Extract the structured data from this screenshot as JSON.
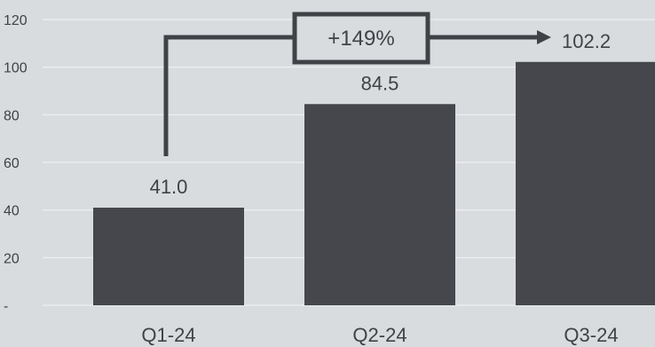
{
  "chart_data": {
    "type": "bar",
    "categories": [
      "Q1-24",
      "Q2-24",
      "Q3-24"
    ],
    "values": [
      41.0,
      84.5,
      102.2
    ],
    "data_labels": [
      "41.0",
      "84.5",
      "102.2"
    ],
    "y_ticks": [
      0,
      20,
      40,
      60,
      80,
      100,
      120
    ],
    "y_tick_labels": [
      "-",
      "20",
      "40",
      "60",
      "80",
      "100",
      "120"
    ],
    "ylim": [
      0,
      120
    ],
    "grid": true,
    "annotation": {
      "text": "+149%",
      "from_category": "Q1-24",
      "to_category": "Q3-24"
    },
    "colors": {
      "background": "#d9dcdf",
      "bar": "#45474d",
      "grid": "#eef0f2",
      "text": "#3f4247",
      "annotation": "#3f4247"
    }
  }
}
